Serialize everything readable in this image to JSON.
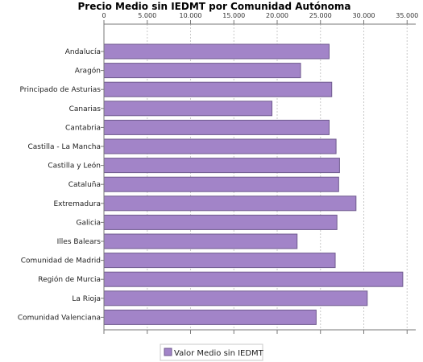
{
  "chart_data": {
    "type": "bar",
    "orientation": "horizontal",
    "title": "Precio Medio sin IEDMT por Comunidad Autónoma",
    "categories": [
      "Andalucía",
      "Aragón",
      "Principado de Asturias",
      "Canarias",
      "Cantabria",
      "Castilla - La Mancha",
      "Castilla y León",
      "Cataluña",
      "Extremadura",
      "Galicia",
      "Illes Balears",
      "Comunidad de Madrid",
      "Región de Murcia",
      "La Rioja",
      "Comunidad Valenciana"
    ],
    "series": [
      {
        "name": "Valor Medio sin IEDMT",
        "values": [
          26000,
          22700,
          26300,
          19400,
          26000,
          26800,
          27200,
          27100,
          29100,
          26900,
          22300,
          26700,
          34500,
          30400,
          24500
        ]
      }
    ],
    "xlim": [
      0,
      36000
    ],
    "xticks": [
      "0",
      "5.000",
      "10.000",
      "15.000",
      "20.000",
      "25.000",
      "30.000",
      "35.000"
    ],
    "xtick_values": [
      0,
      5000,
      10000,
      15000,
      20000,
      25000,
      30000,
      35000
    ],
    "grid": true,
    "legend_position": "bottom",
    "colors": {
      "bar_fill": "#a284c8",
      "bar_stroke": "#6f5a8e",
      "grid": "#c8c8c8",
      "axis": "#777777"
    }
  }
}
